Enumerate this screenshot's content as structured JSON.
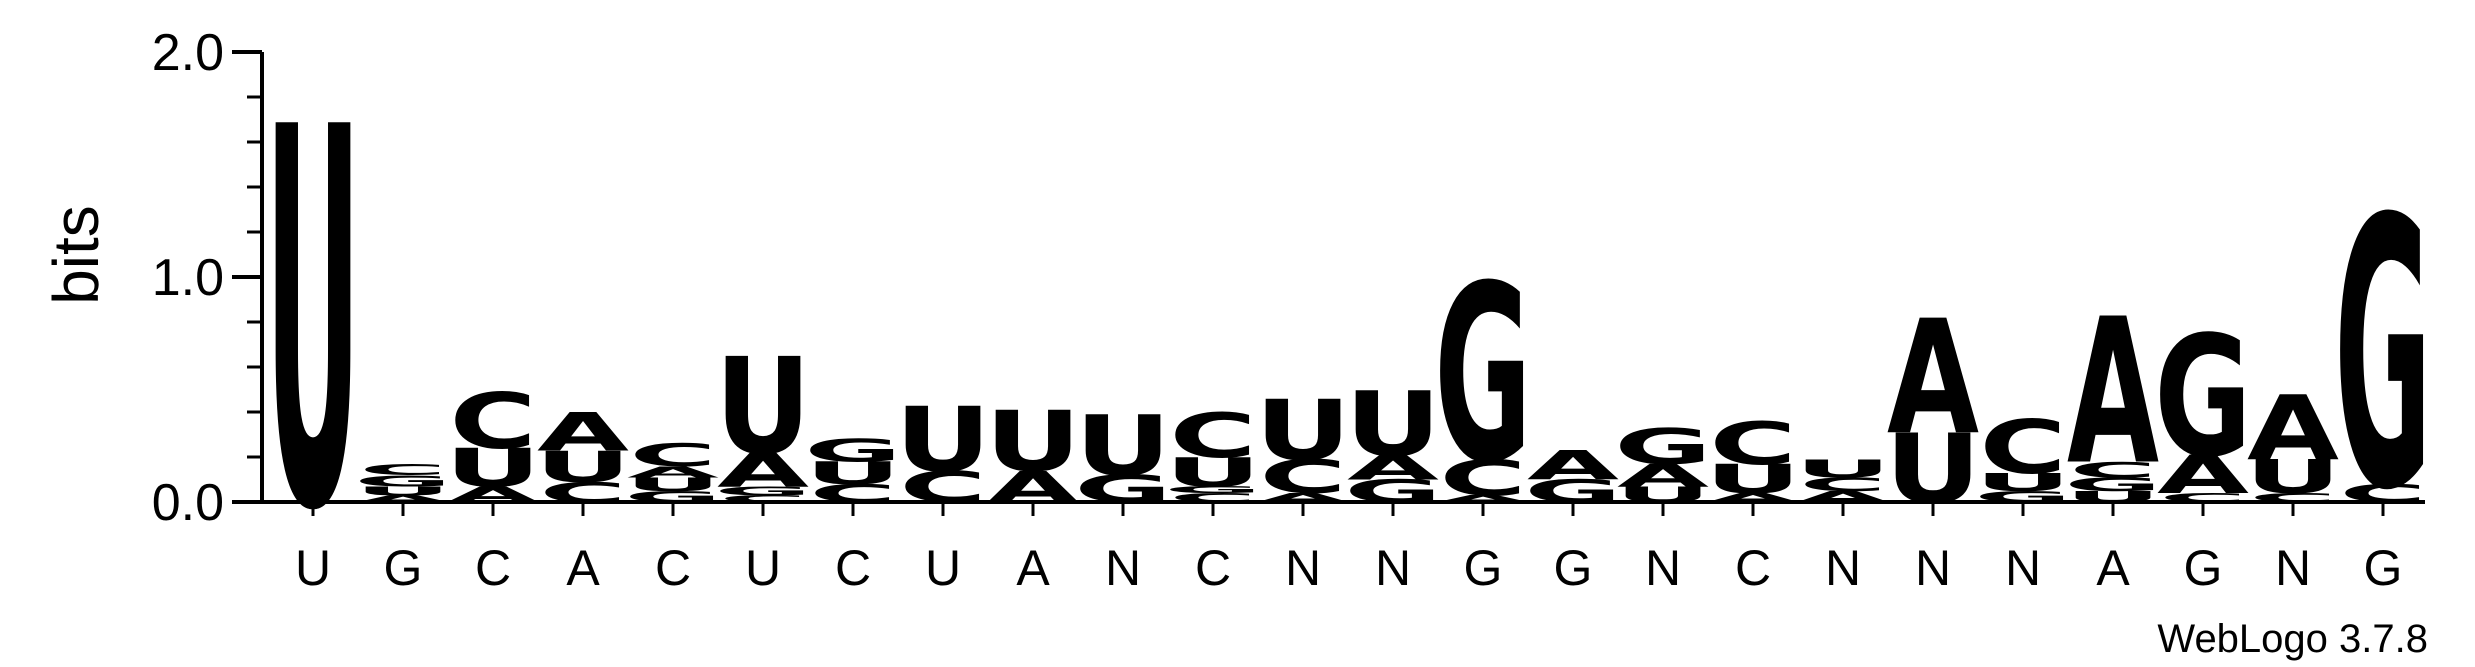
{
  "chart_data": {
    "type": "sequence-logo",
    "ylabel": "bits",
    "ylim": [
      0,
      2.0
    ],
    "yticks": [
      "0.0",
      "1.0",
      "2.0"
    ],
    "ytick_values": [
      0,
      1,
      2
    ],
    "colors": {
      "A": "#ff8c00",
      "U": "#ff8c00",
      "C": "#0000ff",
      "G": "#0000ff"
    },
    "positions": [
      {
        "label": "U",
        "stack": [
          [
            "U",
            1.69
          ]
        ]
      },
      {
        "label": "G",
        "stack": [
          [
            "A",
            0.03
          ],
          [
            "U",
            0.04
          ],
          [
            "G",
            0.05
          ],
          [
            "C",
            0.05
          ]
        ]
      },
      {
        "label": "C",
        "stack": [
          [
            "A",
            0.07
          ],
          [
            "U",
            0.17
          ],
          [
            "C",
            0.25
          ]
        ]
      },
      {
        "label": "A",
        "stack": [
          [
            "C",
            0.09
          ],
          [
            "U",
            0.14
          ],
          [
            "A",
            0.17
          ]
        ]
      },
      {
        "label": "C",
        "stack": [
          [
            "G",
            0.05
          ],
          [
            "U",
            0.06
          ],
          [
            "A",
            0.05
          ],
          [
            "C",
            0.1
          ]
        ]
      },
      {
        "label": "U",
        "stack": [
          [
            "C",
            0.03
          ],
          [
            "G",
            0.04
          ],
          [
            "A",
            0.15
          ],
          [
            "U",
            0.43
          ]
        ]
      },
      {
        "label": "C",
        "stack": [
          [
            "C",
            0.08
          ],
          [
            "U",
            0.1
          ],
          [
            "G",
            0.1
          ]
        ]
      },
      {
        "label": "U",
        "stack": [
          [
            "C",
            0.14
          ],
          [
            "U",
            0.29
          ]
        ]
      },
      {
        "label": "A",
        "stack": [
          [
            "A",
            0.14
          ],
          [
            "U",
            0.27
          ]
        ]
      },
      {
        "label": "N",
        "stack": [
          [
            "G",
            0.12
          ],
          [
            "U",
            0.27
          ]
        ]
      },
      {
        "label": "C",
        "stack": [
          [
            "C",
            0.04
          ],
          [
            "G",
            0.03
          ],
          [
            "U",
            0.13
          ],
          [
            "C",
            0.2
          ]
        ]
      },
      {
        "label": "N",
        "stack": [
          [
            "A",
            0.04
          ],
          [
            "C",
            0.15
          ],
          [
            "U",
            0.27
          ]
        ]
      },
      {
        "label": "N",
        "stack": [
          [
            "G",
            0.1
          ],
          [
            "A",
            0.11
          ],
          [
            "U",
            0.29
          ]
        ]
      },
      {
        "label": "G",
        "stack": [
          [
            "A",
            0.03
          ],
          [
            "C",
            0.16
          ],
          [
            "G",
            0.79
          ]
        ]
      },
      {
        "label": "G",
        "stack": [
          [
            "G",
            0.1
          ],
          [
            "A",
            0.13
          ]
        ]
      },
      {
        "label": "N",
        "stack": [
          [
            "U",
            0.07
          ],
          [
            "A",
            0.1
          ],
          [
            "G",
            0.16
          ]
        ]
      },
      {
        "label": "C",
        "stack": [
          [
            "A",
            0.04
          ],
          [
            "U",
            0.13
          ],
          [
            "C",
            0.19
          ]
        ]
      },
      {
        "label": "N",
        "stack": [
          [
            "A",
            0.05
          ],
          [
            "C",
            0.06
          ],
          [
            "U",
            0.08
          ]
        ]
      },
      {
        "label": "N",
        "stack": [
          [
            "U",
            0.31
          ],
          [
            "A",
            0.51
          ]
        ]
      },
      {
        "label": "N",
        "stack": [
          [
            "G",
            0.05
          ],
          [
            "U",
            0.08
          ],
          [
            "C",
            0.24
          ]
        ]
      },
      {
        "label": "A",
        "stack": [
          [
            "U",
            0.05
          ],
          [
            "G",
            0.06
          ],
          [
            "C",
            0.07
          ],
          [
            "A",
            0.65
          ]
        ]
      },
      {
        "label": "G",
        "stack": [
          [
            "C",
            0.04
          ],
          [
            "A",
            0.17
          ],
          [
            "G",
            0.54
          ]
        ]
      },
      {
        "label": "N",
        "stack": [
          [
            "C",
            0.04
          ],
          [
            "U",
            0.15
          ],
          [
            "A",
            0.29
          ]
        ]
      },
      {
        "label": "G",
        "stack": [
          [
            "C",
            0.08
          ],
          [
            "G",
            1.2
          ]
        ]
      }
    ]
  },
  "credit": "WebLogo 3.7.8"
}
